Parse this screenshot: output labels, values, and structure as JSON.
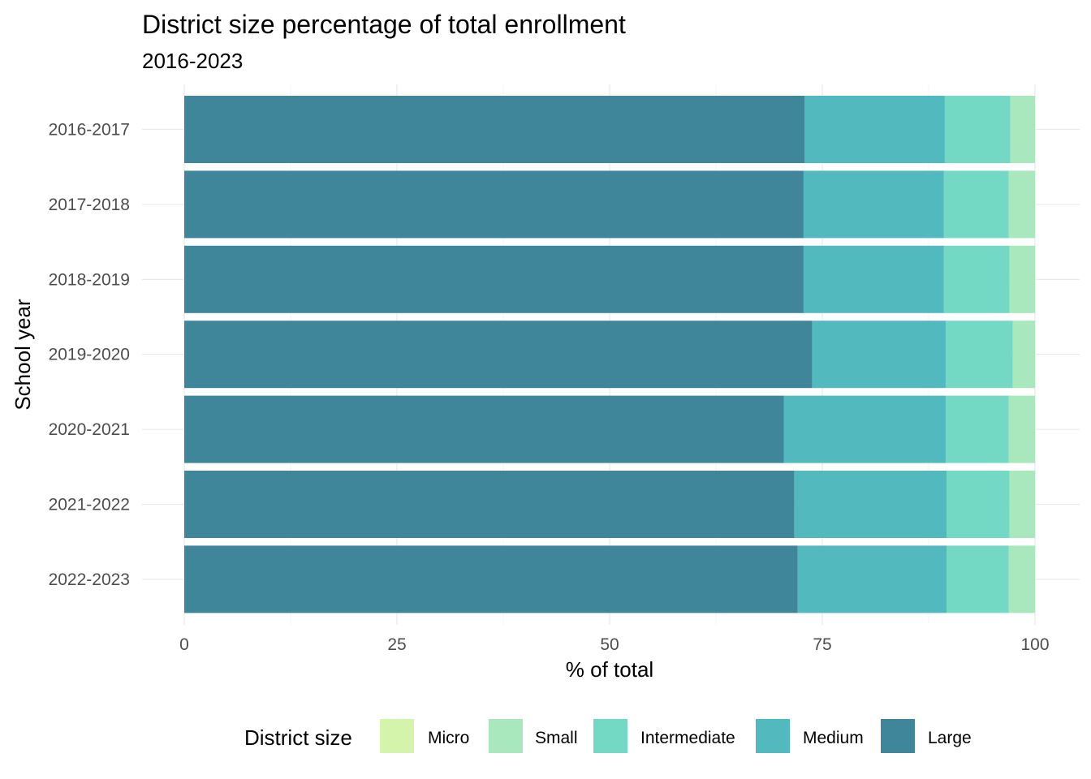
{
  "chart_data": {
    "type": "bar",
    "orientation": "horizontal",
    "stacked": true,
    "title": "District size percentage of total enrollment",
    "subtitle": "2016-2023",
    "xlabel": "% of total",
    "ylabel": "School year",
    "xlim": [
      0,
      100
    ],
    "x_ticks": [
      "0",
      "25",
      "50",
      "75",
      "100"
    ],
    "grid": true,
    "legend": {
      "title": "District size",
      "position": "bottom",
      "items": [
        {
          "name": "Micro",
          "color": "#d4f4ac"
        },
        {
          "name": "Small",
          "color": "#a8e8bc"
        },
        {
          "name": "Intermediate",
          "color": "#74d9c4"
        },
        {
          "name": "Medium",
          "color": "#52b9be"
        },
        {
          "name": "Large",
          "color": "#40869b"
        }
      ]
    },
    "categories": [
      "2016-2017",
      "2017-2018",
      "2018-2019",
      "2019-2020",
      "2020-2021",
      "2021-2022",
      "2022-2023"
    ],
    "series": [
      {
        "name": "Large",
        "color": "#40869b",
        "values": [
          72.9,
          72.8,
          72.8,
          73.8,
          70.5,
          71.7,
          72.1
        ]
      },
      {
        "name": "Medium",
        "color": "#52b9be",
        "values": [
          16.5,
          16.5,
          16.5,
          15.7,
          19.0,
          17.9,
          17.5
        ]
      },
      {
        "name": "Intermediate",
        "color": "#74d9c4",
        "values": [
          7.7,
          7.6,
          7.7,
          7.9,
          7.4,
          7.4,
          7.3
        ]
      },
      {
        "name": "Small",
        "color": "#a8e8bc",
        "values": [
          2.9,
          3.1,
          3.0,
          2.6,
          3.1,
          3.0,
          3.1
        ]
      },
      {
        "name": "Micro",
        "color": "#d4f4ac",
        "values": [
          0.0,
          0.0,
          0.0,
          0.0,
          0.0,
          0.0,
          0.0
        ]
      }
    ]
  }
}
